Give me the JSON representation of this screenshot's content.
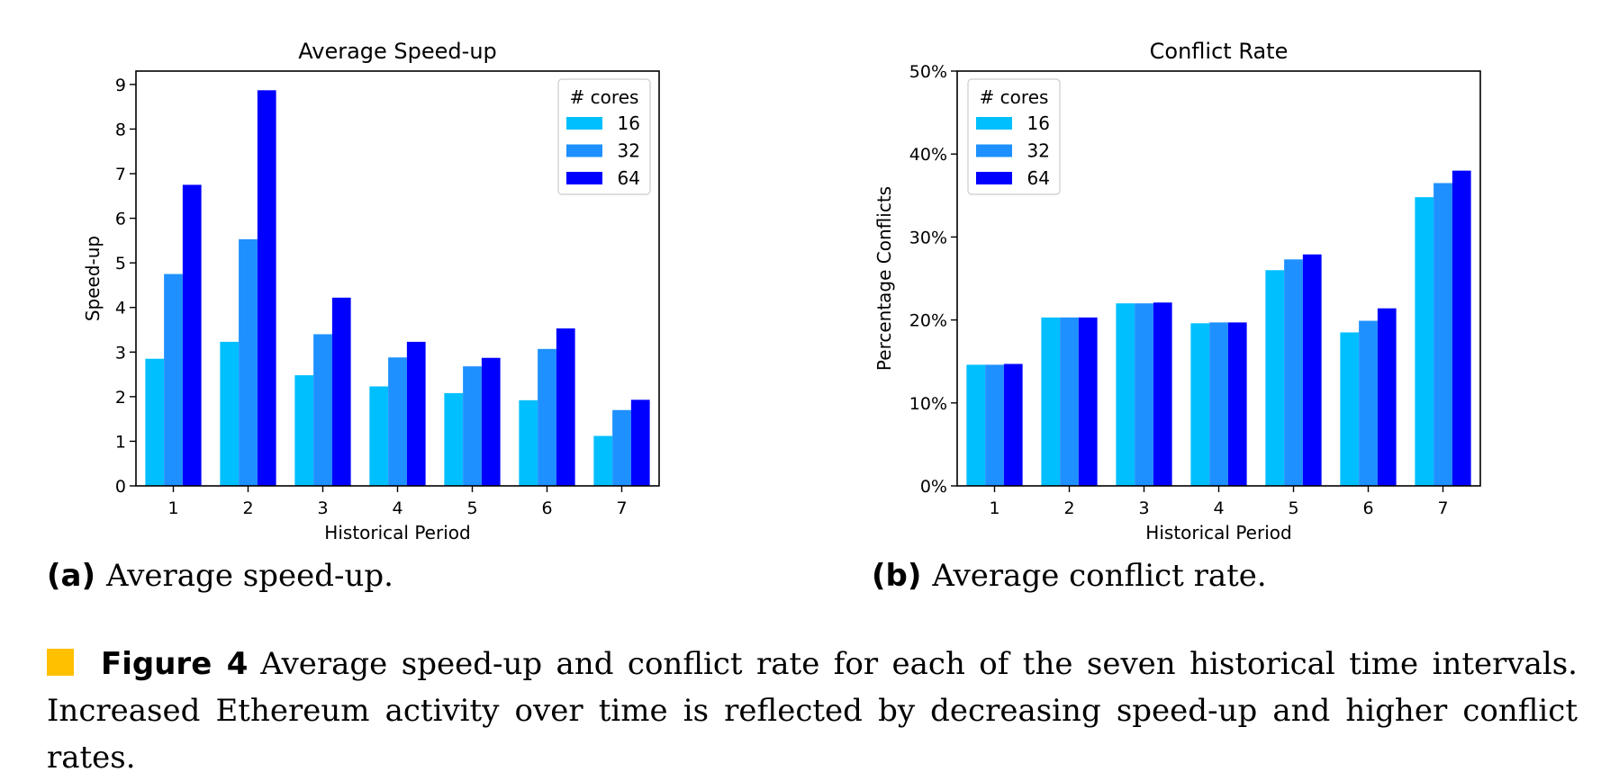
{
  "colors": {
    "series": [
      "#00BFFF",
      "#1E90FF",
      "#0000FF"
    ],
    "caption_marker": "#FFC000"
  },
  "panels": {
    "a": {
      "tag": "(a)",
      "caption": "Average speed-up."
    },
    "b": {
      "tag": "(b)",
      "caption": "Average conflict rate."
    }
  },
  "figure": {
    "label": "Figure 4",
    "caption": "Average speed-up and conflict rate for each of the seven historical time intervals. Increased Ethereum activity over time is reflected by decreasing speed-up and higher conflict rates."
  },
  "chart_data": [
    {
      "type": "bar",
      "title": "Average Speed-up",
      "xlabel": "Historical Period",
      "ylabel": "Speed-up",
      "categories": [
        "1",
        "2",
        "3",
        "4",
        "5",
        "6",
        "7"
      ],
      "ylim": [
        0,
        9.3
      ],
      "yticks": [
        0,
        1,
        2,
        3,
        4,
        5,
        6,
        7,
        8,
        9
      ],
      "ytick_labels": [
        "0",
        "1",
        "2",
        "3",
        "4",
        "5",
        "6",
        "7",
        "8",
        "9"
      ],
      "legend": {
        "title": "# cores",
        "position": "top-right"
      },
      "grid": false,
      "series": [
        {
          "name": "16",
          "values": [
            2.85,
            3.23,
            2.48,
            2.23,
            2.08,
            1.92,
            1.12
          ]
        },
        {
          "name": "32",
          "values": [
            4.75,
            5.53,
            3.4,
            2.88,
            2.68,
            3.07,
            1.7
          ]
        },
        {
          "name": "64",
          "values": [
            6.75,
            8.87,
            4.22,
            3.23,
            2.87,
            3.53,
            1.93
          ]
        }
      ]
    },
    {
      "type": "bar",
      "title": "Conflict Rate",
      "xlabel": "Historical Period",
      "ylabel": "Percentage Conflicts",
      "categories": [
        "1",
        "2",
        "3",
        "4",
        "5",
        "6",
        "7"
      ],
      "ylim": [
        0,
        0.5
      ],
      "yticks": [
        0,
        0.1,
        0.2,
        0.3,
        0.4,
        0.5
      ],
      "ytick_labels": [
        "0%",
        "10%",
        "20%",
        "30%",
        "40%",
        "50%"
      ],
      "legend": {
        "title": "# cores",
        "position": "top-left"
      },
      "grid": false,
      "series": [
        {
          "name": "16",
          "values": [
            0.146,
            0.203,
            0.22,
            0.196,
            0.26,
            0.185,
            0.348
          ]
        },
        {
          "name": "32",
          "values": [
            0.146,
            0.203,
            0.22,
            0.197,
            0.273,
            0.199,
            0.365
          ]
        },
        {
          "name": "64",
          "values": [
            0.147,
            0.203,
            0.221,
            0.197,
            0.279,
            0.214,
            0.38
          ]
        }
      ]
    }
  ]
}
